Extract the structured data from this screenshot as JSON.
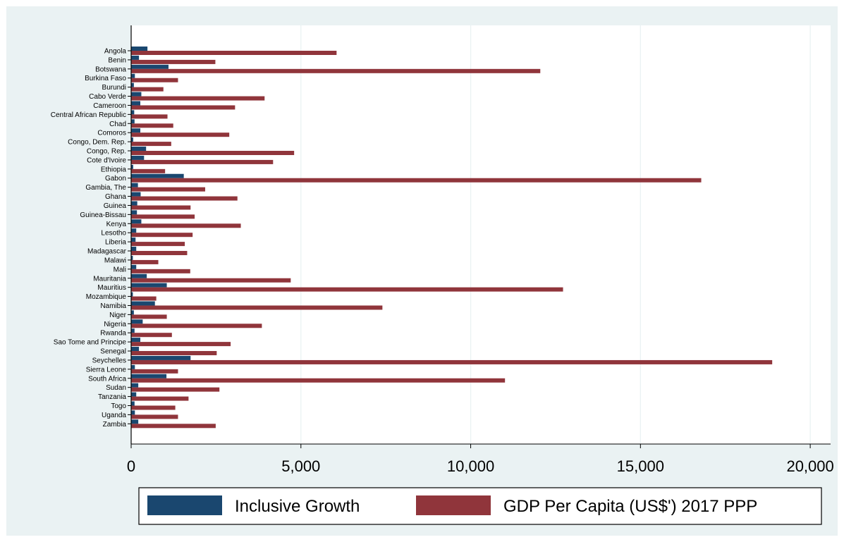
{
  "chart_data": {
    "type": "bar",
    "orientation": "horizontal",
    "categories": [
      "Angola",
      "Benin",
      "Botswana",
      "Burkina Faso",
      "Burundi",
      "Cabo Verde",
      "Cameroon",
      "Central African Republic",
      "Chad",
      "Comoros",
      "Congo, Dem. Rep.",
      "Congo, Rep.",
      "Cote d'Ivoire",
      "Ethiopia",
      "Gabon",
      "Gambia, The",
      "Ghana",
      "Guinea",
      "Guinea-Bissau",
      "Kenya",
      "Lesotho",
      "Liberia",
      "Madagascar",
      "Malawi",
      "Mali",
      "Mauritania",
      "Mauritius",
      "Mozambique",
      "Namibia",
      "Niger",
      "Nigeria",
      "Rwanda",
      "Sao Tome and Principe",
      "Senegal",
      "Seychelles",
      "Sierra Leone",
      "South Africa",
      "Sudan",
      "Tanzania",
      "Togo",
      "Uganda",
      "Zambia"
    ],
    "series": [
      {
        "name": "Inclusive Growth",
        "color": "#1a476f",
        "values": [
          480,
          230,
          1100,
          110,
          80,
          300,
          270,
          90,
          100,
          270,
          60,
          440,
          380,
          60,
          1550,
          200,
          280,
          180,
          170,
          300,
          150,
          130,
          150,
          50,
          150,
          460,
          1050,
          50,
          700,
          80,
          340,
          100,
          270,
          230,
          1750,
          110,
          1040,
          210,
          150,
          100,
          110,
          210
        ]
      },
      {
        "name": "GDP Per Capita (US$') 2017 PPP",
        "color": "#90353b",
        "values": [
          6050,
          2480,
          12050,
          1380,
          950,
          3930,
          3060,
          1070,
          1240,
          2890,
          1180,
          4800,
          4180,
          1000,
          16790,
          2180,
          3130,
          1750,
          1870,
          3230,
          1810,
          1580,
          1650,
          800,
          1740,
          4700,
          12720,
          740,
          7400,
          1050,
          3850,
          1200,
          2930,
          2520,
          18880,
          1380,
          11010,
          2600,
          1690,
          1300,
          1380,
          2490
        ]
      }
    ],
    "xlim": [
      0,
      20600
    ],
    "xticks": [
      0,
      5000,
      10000,
      15000,
      20000
    ],
    "xtick_labels": [
      "0",
      "5,000",
      "10,000",
      "15,000",
      "20,000"
    ],
    "grid": true,
    "legend_position": "bottom"
  }
}
